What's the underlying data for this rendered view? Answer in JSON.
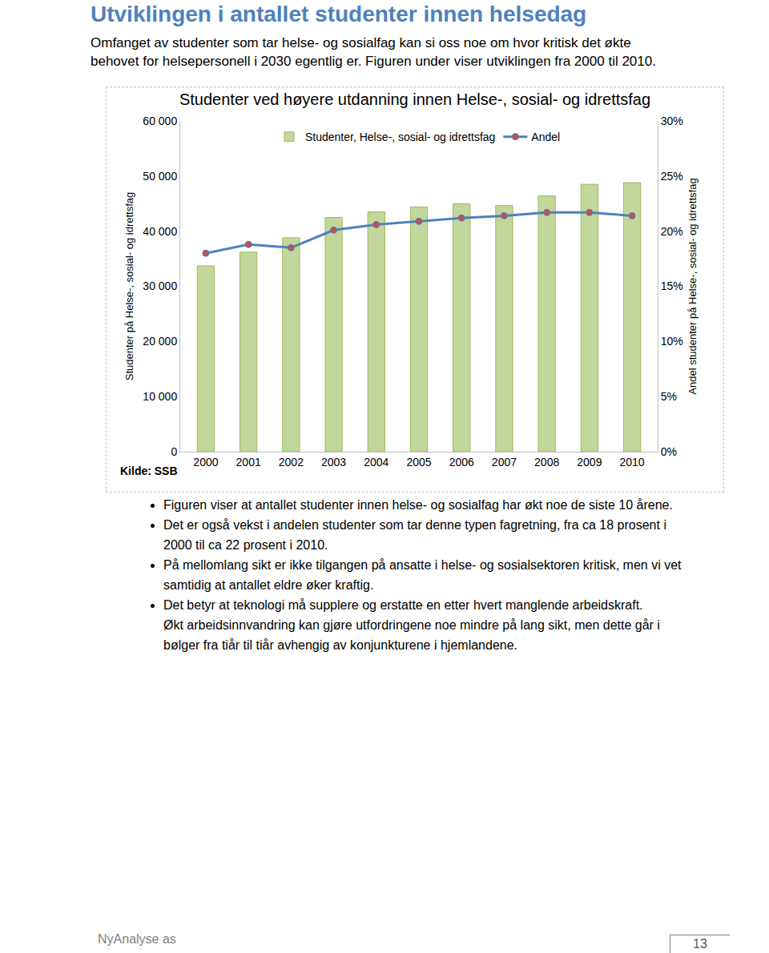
{
  "heading": "Utviklingen i antallet studenter innen helsedag",
  "intro": "Omfanget av studenter som tar helse- og sosialfag kan si oss noe om hvor kritisk det økte behovet for helsepersonell i 2030 egentlig er. Figuren under viser utviklingen fra 2000 til 2010.",
  "chart_data": {
    "type": "bar",
    "title": "Studenter ved høyere utdanning innen Helse-, sosial- og idrettsfag",
    "ylabel": "Studenter på Helse-, sosial- og idrettsfag",
    "y2label": "Andel studenter på Helse-, sosial- og idrettsfag",
    "source": "Kilde: SSB",
    "categories": [
      "2000",
      "2001",
      "2002",
      "2003",
      "2004",
      "2005",
      "2006",
      "2007",
      "2008",
      "2009",
      "2010"
    ],
    "series": [
      {
        "name": "Studenter, Helse-, sosial- og idrettsfag",
        "type": "bar",
        "color": "#c3d69b",
        "values": [
          33700,
          36200,
          38800,
          42500,
          43500,
          44400,
          45000,
          44700,
          46400,
          48500,
          48800
        ]
      },
      {
        "name": "Andel",
        "type": "line",
        "color": "#4f81bd",
        "marker": "circle",
        "axis": "y2",
        "values": [
          18.0,
          18.8,
          18.5,
          20.1,
          20.6,
          20.9,
          21.2,
          21.4,
          21.7,
          21.7,
          21.4
        ]
      }
    ],
    "ylim": [
      0,
      60000
    ],
    "yticks": [
      0,
      {
        "value": 10000,
        "label": "10 000"
      },
      {
        "value": 20000,
        "label": "20 000"
      },
      {
        "value": 30000,
        "label": "30 000"
      },
      {
        "value": 40000,
        "label": "40 000"
      },
      {
        "value": 50000,
        "label": "50 000"
      },
      {
        "value": 60000,
        "label": "60 000"
      }
    ],
    "y2lim": [
      0,
      30
    ],
    "y2ticks": [
      {
        "value": 0,
        "label": "0%"
      },
      {
        "value": 5,
        "label": "5%"
      },
      {
        "value": 10,
        "label": "10%"
      },
      {
        "value": 15,
        "label": "15%"
      },
      {
        "value": 20,
        "label": "20%"
      },
      {
        "value": 25,
        "label": "25%"
      },
      {
        "value": 30,
        "label": "30%"
      }
    ],
    "grid": false,
    "legend": "top"
  },
  "bullets": [
    [
      "Figuren viser at antallet studenter innen helse- og sosialfag har økt noe de siste 10 årene."
    ],
    [
      "Det er også vekst i andelen studenter som tar denne typen fagretning, fra ca 18 prosent i 2000 til ca 22 prosent i 2010."
    ],
    [
      "På mellomlang sikt er ikke tilgangen på ansatte i helse- og sosialsektoren kritisk, men vi vet samtidig at antallet eldre øker kraftig."
    ],
    [
      "Det betyr at teknologi må supplere og erstatte en etter hvert manglende arbeidskraft.",
      "Økt arbeidsinnvandring kan gjøre utfordringene noe mindre på lang sikt, men dette går i bølger fra tiår til tiår avhengig av konjunkturene i hjemlandene."
    ]
  ],
  "footer": {
    "company": "NyAnalyse as",
    "page": "13"
  }
}
